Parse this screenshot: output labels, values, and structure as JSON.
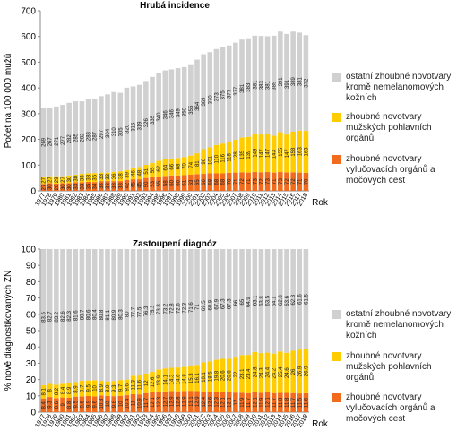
{
  "chart_data": [
    {
      "type": "bar",
      "stacked": true,
      "title": "Hrubá incidence",
      "y_label": "Počet na 100 000 mužů",
      "x_label": "Rok",
      "categories": [
        "1977",
        "1978",
        "1979",
        "1980",
        "1981",
        "1982",
        "1983",
        "1984",
        "1985",
        "1986",
        "1987",
        "1988",
        "1989",
        "1990",
        "1991",
        "1992",
        "1993",
        "1994",
        "1995",
        "1996",
        "1997",
        "1998",
        "1999",
        "2000",
        "2001",
        "2002",
        "2003",
        "2004",
        "2005",
        "2006",
        "2007",
        "2008",
        "2009",
        "2010",
        "2011",
        "2012",
        "2013",
        "2014",
        "2015",
        "2016",
        "2017",
        "2018"
      ],
      "series": [
        {
          "name": "zhoubné novotvary vylučovacích orgánů a močových cest",
          "color": "#f26b1d",
          "values": [
            27,
            30,
            28,
            30,
            30,
            33,
            33,
            35,
            34,
            38,
            38,
            38,
            38,
            42,
            45,
            45,
            50,
            53,
            55,
            58,
            60,
            60,
            61,
            63,
            65,
            66,
            68,
            68,
            68,
            70,
            71,
            72,
            71,
            73,
            72,
            73,
            71,
            73,
            72,
            72,
            71,
            70
          ]
        },
        {
          "name": "zhoubné novotvary mužských pohlavních orgánů",
          "color": "#ffcc00",
          "values": [
            27,
            27,
            29,
            27,
            30,
            30,
            33,
            33,
            35,
            33,
            33,
            36,
            38,
            39,
            46,
            48,
            51,
            55,
            62,
            64,
            66,
            68,
            70,
            74,
            81,
            96,
            101,
            110,
            116,
            118,
            128,
            135,
            139,
            149,
            147,
            147,
            143,
            155,
            147,
            158,
            163,
            163
          ]
        },
        {
          "name": "ostatní zhoubné novotvary kromě nemelanomových kožních",
          "color": "#d0d0d0",
          "values": [
            269,
            267,
            271,
            277,
            282,
            285,
            282,
            288,
            287,
            297,
            304,
            310,
            305,
            320,
            315,
            319,
            326,
            335,
            340,
            346,
            346,
            349,
            350,
            355,
            364,
            369,
            370,
            373,
            375,
            377,
            377,
            381,
            383,
            381,
            383,
            381,
            389,
            391,
            391,
            389,
            381,
            372
          ]
        }
      ],
      "ylim": [
        0,
        700
      ],
      "yticks": [
        0,
        100,
        200,
        300,
        400,
        500,
        600,
        700
      ],
      "grid": false
    },
    {
      "type": "bar",
      "stacked": true,
      "title": "Zastoupení diagnóz",
      "y_label": "% nově diagnostikovaných ZN",
      "x_label": "Rok",
      "categories": [
        "1977",
        "1978",
        "1979",
        "1980",
        "1981",
        "1982",
        "1983",
        "1984",
        "1985",
        "1986",
        "1987",
        "1988",
        "1989",
        "1990",
        "1991",
        "1992",
        "1993",
        "1994",
        "1995",
        "1996",
        "1997",
        "1998",
        "1999",
        "2000",
        "2001",
        "2002",
        "2003",
        "2004",
        "2005",
        "2006",
        "2007",
        "2008",
        "2009",
        "2010",
        "2011",
        "2012",
        "2013",
        "2014",
        "2015",
        "2016",
        "2017",
        "2018"
      ],
      "series": [
        {
          "name": "zhoubné novotvary vylučovacích orgánů a močových cest",
          "color": "#f26b1d",
          "values": [
            8.4,
            9.3,
            8.6,
            9.0,
            8.8,
            9.5,
            9.6,
            9.9,
            9.6,
            10.3,
            10.0,
            9.8,
            10.0,
            10.4,
            11.0,
            10.9,
            11.7,
            12.1,
            12.3,
            12.7,
            12.9,
            12.8,
            12.9,
            13.1,
            12.9,
            12.4,
            12.6,
            12.3,
            12.1,
            12.1,
            12.0,
            11.9,
            11.7,
            12.1,
            11.9,
            12.1,
            11.7,
            11.8,
            11.8,
            11.7,
            11.5,
            11.6
          ]
        },
        {
          "name": "zhoubné novotvary mužských pohlavních orgánů",
          "color": "#ffcc00",
          "values": [
            8.1,
            8.0,
            8.2,
            8.4,
            8.9,
            8.9,
            9.7,
            9.5,
            10.0,
            8.9,
            8.9,
            9.3,
            9.7,
            9.6,
            11.3,
            11.6,
            12.0,
            12.6,
            13.9,
            14.1,
            14.3,
            14.6,
            14.8,
            15.3,
            16.1,
            18.1,
            18.5,
            19.8,
            20.6,
            20.6,
            22.0,
            23.1,
            23.4,
            24.8,
            24.3,
            24.4,
            24.2,
            25.4,
            24.6,
            26.0,
            26.9,
            26.9
          ]
        },
        {
          "name": "ostatní zhoubné novotvary kromě nemelanomových kožních",
          "color": "#d0d0d0",
          "values": [
            83.5,
            82.7,
            83.2,
            82.6,
            82.3,
            81.6,
            80.7,
            80.6,
            80.4,
            80.8,
            81.1,
            80.9,
            80.3,
            80.0,
            77.7,
            77.5,
            76.3,
            75.3,
            73.8,
            73.2,
            72.8,
            72.6,
            72.3,
            71.6,
            71.0,
            69.5,
            68.9,
            67.9,
            67.3,
            67.3,
            66.0,
            65.0,
            64.9,
            63.1,
            63.8,
            63.5,
            64.1,
            62.8,
            63.6,
            62.3,
            61.6,
            61.5
          ]
        }
      ],
      "ylim": [
        0,
        100
      ],
      "yticks": [
        0,
        10,
        20,
        30,
        40,
        50,
        60,
        70,
        80,
        90,
        100
      ],
      "grid": false
    }
  ]
}
